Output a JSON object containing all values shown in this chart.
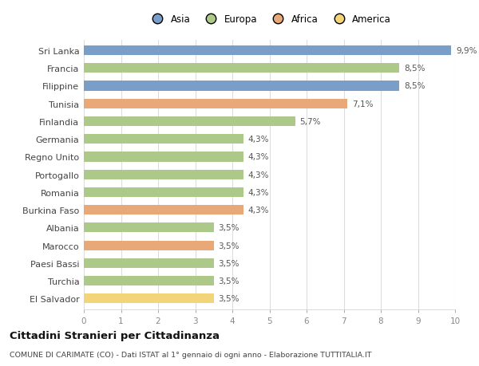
{
  "countries": [
    "El Salvador",
    "Turchia",
    "Paesi Bassi",
    "Marocco",
    "Albania",
    "Burkina Faso",
    "Romania",
    "Portogallo",
    "Regno Unito",
    "Germania",
    "Finlandia",
    "Tunisia",
    "Filippine",
    "Francia",
    "Sri Lanka"
  ],
  "values": [
    3.5,
    3.5,
    3.5,
    3.5,
    3.5,
    4.3,
    4.3,
    4.3,
    4.3,
    4.3,
    5.7,
    7.1,
    8.5,
    8.5,
    9.9
  ],
  "labels": [
    "3,5%",
    "3,5%",
    "3,5%",
    "3,5%",
    "3,5%",
    "4,3%",
    "4,3%",
    "4,3%",
    "4,3%",
    "4,3%",
    "5,7%",
    "7,1%",
    "8,5%",
    "8,5%",
    "9,9%"
  ],
  "colors": [
    "#f2d479",
    "#adc98a",
    "#adc98a",
    "#e8a878",
    "#adc98a",
    "#e8a878",
    "#adc98a",
    "#adc98a",
    "#adc98a",
    "#adc98a",
    "#adc98a",
    "#e8a878",
    "#7a9ec8",
    "#adc98a",
    "#7a9ec8"
  ],
  "legend_labels": [
    "Asia",
    "Europa",
    "Africa",
    "America"
  ],
  "legend_colors": [
    "#7a9ec8",
    "#adc98a",
    "#e8a878",
    "#f2d479"
  ],
  "title": "Cittadini Stranieri per Cittadinanza",
  "subtitle": "COMUNE DI CARIMATE (CO) - Dati ISTAT al 1° gennaio di ogni anno - Elaborazione TUTTITALIA.IT",
  "xlim": [
    0,
    10
  ],
  "xticks": [
    0,
    1,
    2,
    3,
    4,
    5,
    6,
    7,
    8,
    9,
    10
  ],
  "background_color": "#ffffff",
  "bar_height": 0.55,
  "bar_gap": 0.45
}
